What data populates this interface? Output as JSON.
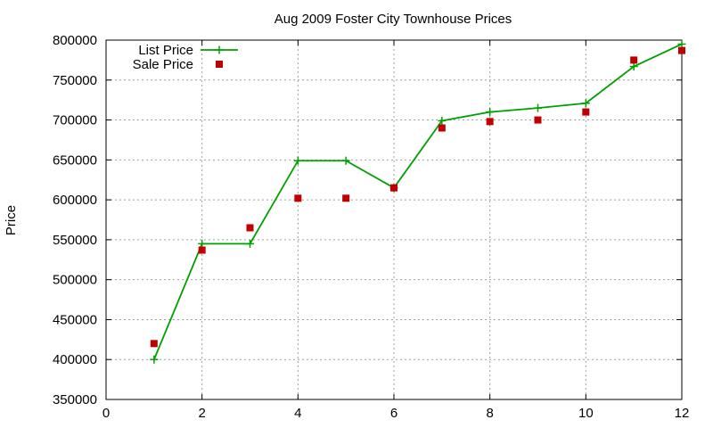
{
  "chart_data": {
    "type": "line",
    "title": "Aug 2009 Foster City Townhouse Prices",
    "xlabel": "",
    "ylabel": "Price",
    "xlim": [
      0,
      12
    ],
    "ylim": [
      350000,
      800000
    ],
    "xticks": [
      0,
      2,
      4,
      6,
      8,
      10,
      12
    ],
    "yticks": [
      350000,
      400000,
      450000,
      500000,
      550000,
      600000,
      650000,
      700000,
      750000,
      800000
    ],
    "grid": true,
    "legend_position": "top-left",
    "series": [
      {
        "name": "List Price",
        "style": "line-with-plus-markers",
        "color": "#00a000",
        "x": [
          1,
          2,
          3,
          4,
          5,
          6,
          7,
          8,
          9,
          10,
          11,
          12
        ],
        "y": [
          400000,
          545000,
          545000,
          649000,
          649000,
          615000,
          699000,
          710000,
          715000,
          721000,
          767000,
          795000
        ]
      },
      {
        "name": "Sale Price",
        "style": "square-markers",
        "color": "#c00000",
        "x": [
          1,
          2,
          3,
          4,
          5,
          6,
          7,
          8,
          9,
          10,
          11,
          12
        ],
        "y": [
          420000,
          537000,
          565000,
          602000,
          602000,
          615000,
          690000,
          698000,
          700000,
          710000,
          775000,
          787000
        ]
      }
    ]
  }
}
